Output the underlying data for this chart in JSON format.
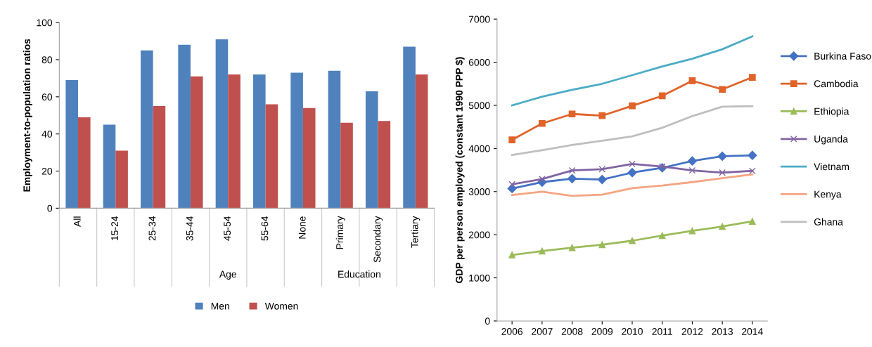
{
  "chart_data": [
    {
      "type": "bar",
      "ylabel": "Employment-to-population ratios",
      "categories": [
        "All",
        "15-24",
        "25-34",
        "35-44",
        "45-54",
        "55-64",
        "None",
        "Primary",
        "Secondary",
        "Tertiary"
      ],
      "series": [
        {
          "name": "Men",
          "color": "#4f81bd",
          "values": [
            69,
            45,
            85,
            88,
            91,
            72,
            73,
            74,
            63,
            87
          ]
        },
        {
          "name": "Women",
          "color": "#c0504d",
          "values": [
            49,
            31,
            55,
            71,
            72,
            56,
            54,
            46,
            47,
            72
          ]
        }
      ],
      "annotations": [
        "Age",
        "Education"
      ],
      "ylim": [
        0,
        100
      ],
      "yticks": [
        0,
        20,
        40,
        60,
        80,
        100
      ],
      "grid": false,
      "legend": "bottom"
    },
    {
      "type": "line",
      "ylabel": "GDP per person employed (constant 1990 PPP $)",
      "x": [
        2006,
        2007,
        2008,
        2009,
        2010,
        2011,
        2012,
        2013,
        2014
      ],
      "series": [
        {
          "name": "Burkina Faso",
          "color": "#4472c4",
          "marker": "diamond",
          "values": [
            3070,
            3220,
            3300,
            3280,
            3440,
            3550,
            3710,
            3820,
            3840
          ]
        },
        {
          "name": "Cambodia",
          "color": "#e0632a",
          "marker": "square",
          "values": [
            4200,
            4580,
            4800,
            4760,
            4990,
            5220,
            5570,
            5370,
            5650
          ]
        },
        {
          "name": "Ethiopia",
          "color": "#9bbb59",
          "marker": "triangle",
          "values": [
            1530,
            1620,
            1700,
            1770,
            1860,
            1980,
            2090,
            2190,
            2310
          ]
        },
        {
          "name": "Uganda",
          "color": "#8064a2",
          "marker": "cross",
          "values": [
            3170,
            3290,
            3490,
            3520,
            3640,
            3580,
            3490,
            3440,
            3480
          ]
        },
        {
          "name": "Vietnam",
          "color": "#4bacc6",
          "marker": "none",
          "values": [
            5000,
            5200,
            5360,
            5500,
            5700,
            5900,
            6080,
            6300,
            6600
          ]
        },
        {
          "name": "Kenya",
          "color": "#f4a582",
          "marker": "none",
          "values": [
            2920,
            3000,
            2900,
            2930,
            3080,
            3140,
            3220,
            3310,
            3400
          ]
        },
        {
          "name": "Ghana",
          "color": "#bfbfbf",
          "marker": "none",
          "values": [
            3850,
            3960,
            4080,
            4180,
            4280,
            4480,
            4750,
            4970,
            4980
          ]
        }
      ],
      "xlim": [
        2005.5,
        2014.5
      ],
      "xticks": [
        2006,
        2007,
        2008,
        2009,
        2010,
        2011,
        2012,
        2013,
        2014
      ],
      "ylim": [
        0,
        7000
      ],
      "yticks": [
        0,
        1000,
        2000,
        3000,
        4000,
        5000,
        6000,
        7000
      ],
      "grid": false,
      "legend": "right"
    }
  ]
}
